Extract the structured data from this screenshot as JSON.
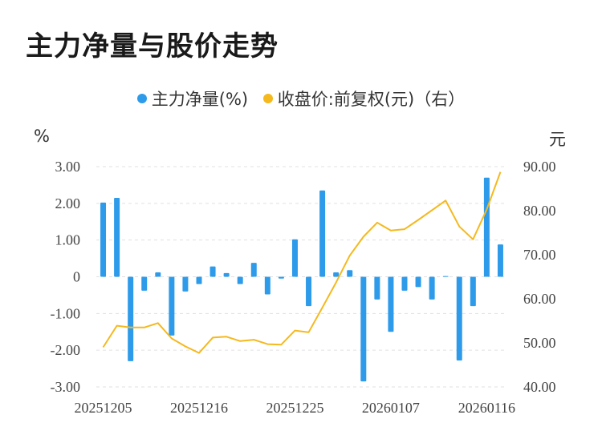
{
  "title": "主力净量与股价走势",
  "legend": {
    "bar_label": "主力净量(%)",
    "line_label": "收盘价:前复权(元)（右）"
  },
  "units": {
    "left": "%",
    "right": "元"
  },
  "colors": {
    "bar": "#2e9bea",
    "line": "#f5b91e",
    "grid": "#e0e0e0"
  },
  "chart_data": {
    "type": "bar+line",
    "title": "主力净量与股价走势",
    "x_tick_labels": [
      "20251205",
      "20251216",
      "20251225",
      "20260107",
      "20260116"
    ],
    "y_left": {
      "unit": "%",
      "range": [
        -3,
        3
      ],
      "ticks": [
        "3.00",
        "2.00",
        "1.00",
        "0",
        "-1.00",
        "-2.00",
        "-3.00"
      ]
    },
    "y_right": {
      "unit": "元",
      "range": [
        40,
        90
      ],
      "ticks": [
        "90.00",
        "80.00",
        "70.00",
        "60.00",
        "50.00",
        "40.00"
      ]
    },
    "series": [
      {
        "name": "主力净量(%)",
        "type": "bar",
        "axis": "left",
        "values": [
          2.02,
          2.15,
          -2.3,
          -0.38,
          0.12,
          -1.6,
          -0.4,
          -0.2,
          0.28,
          0.1,
          -0.2,
          0.38,
          -0.48,
          -0.05,
          1.02,
          -0.8,
          2.35,
          0.12,
          0.18,
          -2.85,
          -0.62,
          -1.5,
          -0.38,
          -0.28,
          -0.62,
          0.02,
          -2.28,
          -0.8,
          2.7,
          0.88
        ]
      },
      {
        "name": "收盘价:前复权(元)（右）",
        "type": "line",
        "axis": "right",
        "values": [
          49.0,
          53.9,
          53.5,
          53.5,
          54.5,
          51.0,
          49.2,
          47.7,
          51.2,
          51.4,
          50.4,
          50.7,
          49.7,
          49.6,
          52.8,
          52.4,
          58.0,
          63.7,
          69.8,
          74.1,
          77.3,
          75.5,
          75.8,
          77.9,
          80.1,
          82.3,
          76.4,
          73.5,
          80.3,
          88.8
        ]
      }
    ],
    "grid": true,
    "legend_position": "top-center"
  }
}
